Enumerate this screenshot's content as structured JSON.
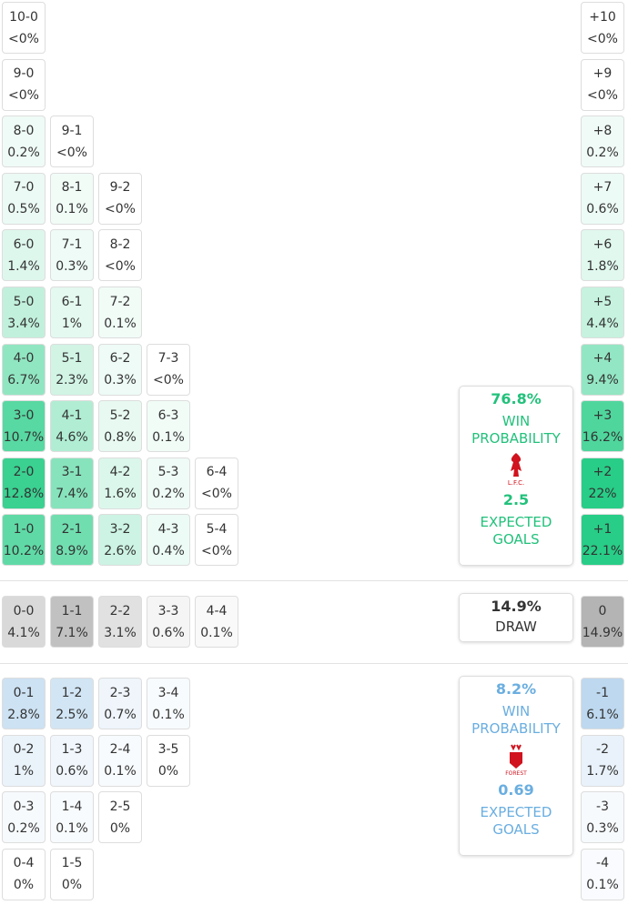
{
  "home_rows": [
    [
      {
        "score": "10-0",
        "prob": "<0%"
      }
    ],
    [
      {
        "score": "9-0",
        "prob": "<0%"
      }
    ],
    [
      {
        "score": "8-0",
        "prob": "0.2%"
      },
      {
        "score": "9-1",
        "prob": "<0%"
      }
    ],
    [
      {
        "score": "7-0",
        "prob": "0.5%"
      },
      {
        "score": "8-1",
        "prob": "0.1%"
      },
      {
        "score": "9-2",
        "prob": "<0%"
      }
    ],
    [
      {
        "score": "6-0",
        "prob": "1.4%"
      },
      {
        "score": "7-1",
        "prob": "0.3%"
      },
      {
        "score": "8-2",
        "prob": "<0%"
      }
    ],
    [
      {
        "score": "5-0",
        "prob": "3.4%"
      },
      {
        "score": "6-1",
        "prob": "1%"
      },
      {
        "score": "7-2",
        "prob": "0.1%"
      }
    ],
    [
      {
        "score": "4-0",
        "prob": "6.7%"
      },
      {
        "score": "5-1",
        "prob": "2.3%"
      },
      {
        "score": "6-2",
        "prob": "0.3%"
      },
      {
        "score": "7-3",
        "prob": "<0%"
      }
    ],
    [
      {
        "score": "3-0",
        "prob": "10.7%"
      },
      {
        "score": "4-1",
        "prob": "4.6%"
      },
      {
        "score": "5-2",
        "prob": "0.8%"
      },
      {
        "score": "6-3",
        "prob": "0.1%"
      }
    ],
    [
      {
        "score": "2-0",
        "prob": "12.8%"
      },
      {
        "score": "3-1",
        "prob": "7.4%"
      },
      {
        "score": "4-2",
        "prob": "1.6%"
      },
      {
        "score": "5-3",
        "prob": "0.2%"
      },
      {
        "score": "6-4",
        "prob": "<0%"
      }
    ],
    [
      {
        "score": "1-0",
        "prob": "10.2%"
      },
      {
        "score": "2-1",
        "prob": "8.9%"
      },
      {
        "score": "3-2",
        "prob": "2.6%"
      },
      {
        "score": "4-3",
        "prob": "0.4%"
      },
      {
        "score": "5-4",
        "prob": "<0%"
      }
    ]
  ],
  "draw_row": [
    {
      "score": "0-0",
      "prob": "4.1%"
    },
    {
      "score": "1-1",
      "prob": "7.1%"
    },
    {
      "score": "2-2",
      "prob": "3.1%"
    },
    {
      "score": "3-3",
      "prob": "0.6%"
    },
    {
      "score": "4-4",
      "prob": "0.1%"
    }
  ],
  "away_rows": [
    [
      {
        "score": "0-1",
        "prob": "2.8%"
      },
      {
        "score": "1-2",
        "prob": "2.5%"
      },
      {
        "score": "2-3",
        "prob": "0.7%"
      },
      {
        "score": "3-4",
        "prob": "0.1%"
      }
    ],
    [
      {
        "score": "0-2",
        "prob": "1%"
      },
      {
        "score": "1-3",
        "prob": "0.6%"
      },
      {
        "score": "2-4",
        "prob": "0.1%"
      },
      {
        "score": "3-5",
        "prob": "0%"
      }
    ],
    [
      {
        "score": "0-3",
        "prob": "0.2%"
      },
      {
        "score": "1-4",
        "prob": "0.1%"
      },
      {
        "score": "2-5",
        "prob": "0%"
      }
    ],
    [
      {
        "score": "0-4",
        "prob": "0%"
      },
      {
        "score": "1-5",
        "prob": "0%"
      }
    ]
  ],
  "home_margins": [
    {
      "score": "+10",
      "prob": "<0%"
    },
    {
      "score": "+9",
      "prob": "<0%"
    },
    {
      "score": "+8",
      "prob": "0.2%"
    },
    {
      "score": "+7",
      "prob": "0.6%"
    },
    {
      "score": "+6",
      "prob": "1.8%"
    },
    {
      "score": "+5",
      "prob": "4.4%"
    },
    {
      "score": "+4",
      "prob": "9.4%"
    },
    {
      "score": "+3",
      "prob": "16.2%"
    },
    {
      "score": "+2",
      "prob": "22%"
    },
    {
      "score": "+1",
      "prob": "22.1%"
    }
  ],
  "draw_margin": {
    "score": "0",
    "prob": "14.9%"
  },
  "away_margins": [
    {
      "score": "-1",
      "prob": "6.1%"
    },
    {
      "score": "-2",
      "prob": "1.7%"
    },
    {
      "score": "-3",
      "prob": "0.3%"
    },
    {
      "score": "-4",
      "prob": "0.1%"
    }
  ],
  "home_summary": {
    "win_prob": "76.8%",
    "win_label_1": "WIN",
    "win_label_2": "PROBABILITY",
    "logo_text": "L.F.C.",
    "xg": "2.5",
    "xg_label_1": "EXPECTED",
    "xg_label_2": "GOALS"
  },
  "draw_summary": {
    "prob": "14.9%",
    "label": "DRAW"
  },
  "away_summary": {
    "win_prob": "8.2%",
    "win_label_1": "WIN",
    "win_label_2": "PROBABILITY",
    "logo_text": "FOREST",
    "xg": "0.69",
    "xg_label_1": "EXPECTED",
    "xg_label_2": "GOALS"
  }
}
